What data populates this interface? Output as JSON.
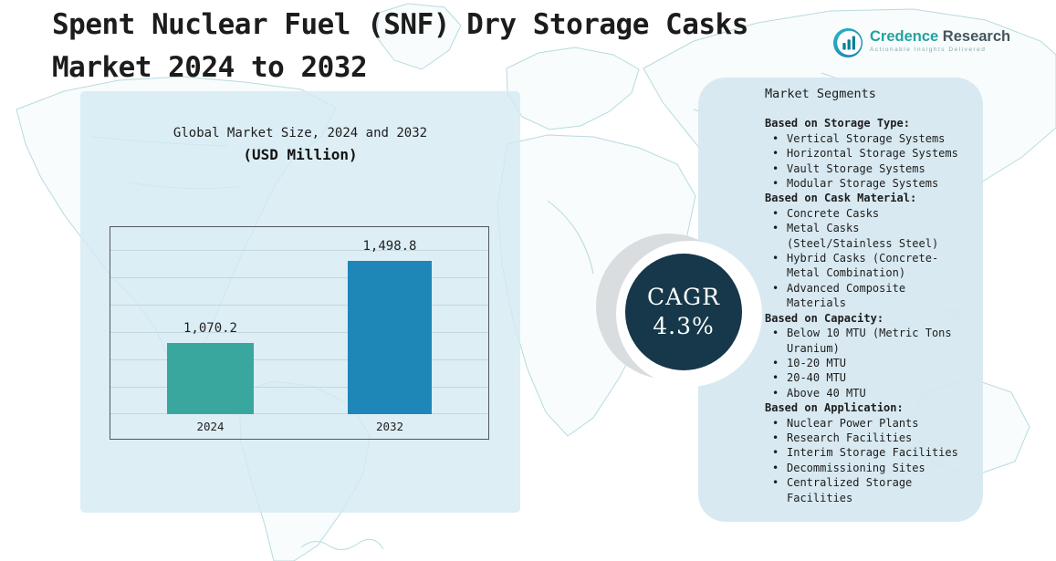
{
  "page": {
    "title_line1": "Spent Nuclear Fuel (SNF) Dry Storage Casks",
    "title_line2": "Market 2024 to 2032"
  },
  "logo": {
    "brand_credence": "Credence",
    "brand_research": "Research",
    "tagline": "Actionable Insights Delivered"
  },
  "chart_data": {
    "type": "bar",
    "title": "Global Market Size, 2024 and 2032",
    "subtitle": "(USD Million)",
    "categories": [
      "2024",
      "2032"
    ],
    "values": [
      1070.2,
      1498.8
    ],
    "value_labels": [
      "1,070.2",
      "1,498.8"
    ],
    "bar_colors": [
      "#3aa79f",
      "#1f86b8"
    ],
    "unit": "USD Million",
    "xlabel": "",
    "ylabel": "",
    "ylim": [
      700,
      1675
    ],
    "grid": true,
    "legend": "none"
  },
  "cagr": {
    "label": "CAGR",
    "value": "4.3%"
  },
  "segments": {
    "title": "Market Segments",
    "groups": [
      {
        "heading": "Based on Storage Type:",
        "items": [
          "Vertical Storage Systems",
          "Horizontal Storage Systems",
          "Vault Storage Systems",
          "Modular Storage Systems"
        ]
      },
      {
        "heading": "Based on Cask Material:",
        "items": [
          "Concrete Casks",
          "Metal Casks (Steel/Stainless Steel)",
          "Hybrid Casks (Concrete-Metal Combination)",
          "Advanced Composite Materials"
        ]
      },
      {
        "heading": "Based on Capacity:",
        "items": [
          "Below 10 MTU (Metric Tons Uranium)",
          "10-20 MTU",
          "20-40 MTU",
          "Above 40 MTU"
        ]
      },
      {
        "heading": "Based on Application:",
        "items": [
          "Nuclear Power Plants",
          "Research Facilities",
          "Interim Storage Facilities",
          "Decommissioning Sites",
          "Centralized Storage Facilities"
        ]
      }
    ]
  },
  "colors": {
    "bar_2024": "#3aa79f",
    "bar_2032": "#1f86b8",
    "cagr_circle": "#16384a",
    "panel_blue": "#d9eaf2",
    "map_stroke": "#b7dbdf",
    "logo_teal": "#23a3a0"
  }
}
